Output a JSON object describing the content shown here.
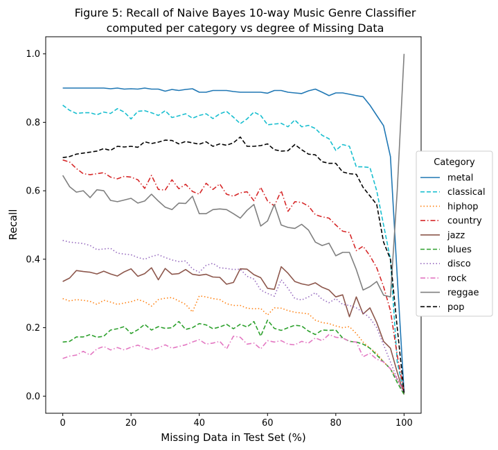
{
  "chart_data": {
    "type": "line",
    "title_lines": [
      "Figure 5: Recall of Naive Bayes 10-way Music Genre Classifier",
      "computed per category vs degree of Missing Data"
    ],
    "xlabel": "Missing Data in Test Set (%)",
    "ylabel": "Recall",
    "xlim": [
      -5,
      105
    ],
    "ylim": [
      -0.05,
      1.05
    ],
    "xticks": [
      0,
      20,
      40,
      60,
      80,
      100
    ],
    "yticks": [
      0.0,
      0.2,
      0.4,
      0.6,
      0.8,
      1.0
    ],
    "xtick_labels": [
      "0",
      "20",
      "40",
      "60",
      "80",
      "100"
    ],
    "ytick_labels": [
      "0.0",
      "0.2",
      "0.4",
      "0.6",
      "0.8",
      "1.0"
    ],
    "grid": false,
    "legend": {
      "title": "Category",
      "placement": "outside-right"
    },
    "x": [
      0,
      2,
      4,
      6,
      8,
      10,
      12,
      14,
      16,
      18,
      20,
      22,
      24,
      26,
      28,
      30,
      32,
      34,
      36,
      38,
      40,
      42,
      44,
      46,
      48,
      50,
      52,
      54,
      56,
      58,
      60,
      62,
      64,
      66,
      68,
      70,
      72,
      74,
      76,
      78,
      80,
      82,
      84,
      86,
      88,
      90,
      92,
      94,
      96,
      98,
      100
    ],
    "series": [
      {
        "name": "metal",
        "color": "#1f77b4",
        "dash": "solid",
        "values": [
          0.9,
          0.9,
          0.9,
          0.9,
          0.9,
          0.9,
          0.9,
          0.898,
          0.9,
          0.897,
          0.898,
          0.897,
          0.9,
          0.897,
          0.897,
          0.891,
          0.896,
          0.893,
          0.896,
          0.898,
          0.888,
          0.888,
          0.893,
          0.893,
          0.893,
          0.89,
          0.888,
          0.888,
          0.888,
          0.888,
          0.885,
          0.893,
          0.893,
          0.888,
          0.886,
          0.884,
          0.892,
          0.897,
          0.888,
          0.878,
          0.886,
          0.886,
          0.882,
          0.878,
          0.875,
          0.85,
          0.82,
          0.79,
          0.7,
          0.35,
          0.01
        ]
      },
      {
        "name": "classical",
        "color": "#17becf",
        "dash": "dashed",
        "values": [
          0.85,
          0.835,
          0.826,
          0.828,
          0.828,
          0.822,
          0.83,
          0.826,
          0.84,
          0.83,
          0.81,
          0.832,
          0.834,
          0.828,
          0.82,
          0.834,
          0.814,
          0.819,
          0.825,
          0.812,
          0.82,
          0.825,
          0.811,
          0.825,
          0.832,
          0.815,
          0.796,
          0.81,
          0.83,
          0.82,
          0.793,
          0.795,
          0.797,
          0.787,
          0.807,
          0.787,
          0.791,
          0.782,
          0.762,
          0.752,
          0.718,
          0.735,
          0.73,
          0.67,
          0.67,
          0.668,
          0.6,
          0.5,
          0.4,
          0.1,
          0.01
        ]
      },
      {
        "name": "hiphop",
        "color": "#ff7f0e",
        "dash": "dotted",
        "values": [
          0.285,
          0.278,
          0.282,
          0.28,
          0.277,
          0.268,
          0.28,
          0.275,
          0.268,
          0.272,
          0.276,
          0.282,
          0.276,
          0.263,
          0.282,
          0.286,
          0.288,
          0.278,
          0.268,
          0.246,
          0.293,
          0.29,
          0.285,
          0.282,
          0.27,
          0.265,
          0.265,
          0.257,
          0.255,
          0.256,
          0.237,
          0.258,
          0.257,
          0.25,
          0.245,
          0.243,
          0.24,
          0.222,
          0.215,
          0.212,
          0.205,
          0.2,
          0.203,
          0.183,
          0.158,
          0.14,
          0.125,
          0.1,
          0.08,
          0.05,
          0.01
        ]
      },
      {
        "name": "country",
        "color": "#d62728",
        "dash": "dashdot",
        "values": [
          0.69,
          0.684,
          0.665,
          0.65,
          0.647,
          0.65,
          0.653,
          0.64,
          0.635,
          0.642,
          0.64,
          0.632,
          0.607,
          0.645,
          0.604,
          0.602,
          0.632,
          0.606,
          0.619,
          0.598,
          0.59,
          0.622,
          0.604,
          0.62,
          0.59,
          0.584,
          0.594,
          0.597,
          0.571,
          0.61,
          0.57,
          0.556,
          0.6,
          0.54,
          0.568,
          0.566,
          0.555,
          0.53,
          0.524,
          0.52,
          0.5,
          0.482,
          0.478,
          0.425,
          0.438,
          0.41,
          0.375,
          0.32,
          0.25,
          0.12,
          0.01
        ]
      },
      {
        "name": "jazz",
        "color": "#8c564b",
        "dash": "solid",
        "values": [
          0.335,
          0.345,
          0.367,
          0.364,
          0.362,
          0.357,
          0.365,
          0.357,
          0.351,
          0.363,
          0.372,
          0.35,
          0.358,
          0.375,
          0.34,
          0.373,
          0.356,
          0.358,
          0.37,
          0.356,
          0.353,
          0.356,
          0.348,
          0.347,
          0.327,
          0.332,
          0.372,
          0.371,
          0.355,
          0.346,
          0.315,
          0.312,
          0.378,
          0.359,
          0.335,
          0.328,
          0.324,
          0.331,
          0.318,
          0.31,
          0.29,
          0.296,
          0.232,
          0.29,
          0.24,
          0.258,
          0.215,
          0.16,
          0.14,
          0.07,
          0.005
        ]
      },
      {
        "name": "blues",
        "color": "#2ca02c",
        "dash": "dashed",
        "values": [
          0.158,
          0.16,
          0.173,
          0.173,
          0.18,
          0.172,
          0.175,
          0.193,
          0.197,
          0.203,
          0.183,
          0.194,
          0.21,
          0.193,
          0.203,
          0.198,
          0.2,
          0.218,
          0.195,
          0.2,
          0.212,
          0.208,
          0.197,
          0.202,
          0.21,
          0.197,
          0.21,
          0.202,
          0.218,
          0.175,
          0.222,
          0.198,
          0.192,
          0.2,
          0.207,
          0.205,
          0.19,
          0.18,
          0.193,
          0.192,
          0.193,
          0.17,
          0.16,
          0.158,
          0.152,
          0.14,
          0.12,
          0.1,
          0.08,
          0.04,
          0.005
        ]
      },
      {
        "name": "disco",
        "color": "#9467bd",
        "dash": "dotted",
        "values": [
          0.455,
          0.45,
          0.448,
          0.446,
          0.44,
          0.428,
          0.43,
          0.432,
          0.418,
          0.415,
          0.413,
          0.405,
          0.4,
          0.408,
          0.413,
          0.405,
          0.398,
          0.393,
          0.395,
          0.372,
          0.362,
          0.382,
          0.388,
          0.375,
          0.373,
          0.37,
          0.371,
          0.35,
          0.342,
          0.31,
          0.3,
          0.292,
          0.34,
          0.315,
          0.285,
          0.281,
          0.29,
          0.302,
          0.283,
          0.273,
          0.285,
          0.268,
          0.265,
          0.258,
          0.245,
          0.228,
          0.2,
          0.15,
          0.1,
          0.05,
          0.01
        ]
      },
      {
        "name": "rock",
        "color": "#e377c2",
        "dash": "dashdot",
        "values": [
          0.11,
          0.117,
          0.12,
          0.131,
          0.12,
          0.138,
          0.145,
          0.135,
          0.142,
          0.135,
          0.143,
          0.149,
          0.141,
          0.135,
          0.141,
          0.15,
          0.14,
          0.145,
          0.15,
          0.158,
          0.165,
          0.152,
          0.155,
          0.16,
          0.138,
          0.175,
          0.172,
          0.152,
          0.155,
          0.138,
          0.162,
          0.158,
          0.162,
          0.152,
          0.15,
          0.16,
          0.155,
          0.17,
          0.162,
          0.18,
          0.172,
          0.17,
          0.16,
          0.158,
          0.115,
          0.125,
          0.108,
          0.1,
          0.08,
          0.05,
          0.01
        ]
      },
      {
        "name": "reggae",
        "color": "#7f7f7f",
        "dash": "solid",
        "values": [
          0.645,
          0.612,
          0.596,
          0.6,
          0.58,
          0.603,
          0.6,
          0.572,
          0.568,
          0.573,
          0.578,
          0.564,
          0.57,
          0.59,
          0.57,
          0.552,
          0.545,
          0.564,
          0.563,
          0.584,
          0.533,
          0.533,
          0.545,
          0.547,
          0.545,
          0.533,
          0.52,
          0.543,
          0.56,
          0.497,
          0.512,
          0.56,
          0.5,
          0.493,
          0.49,
          0.502,
          0.485,
          0.45,
          0.44,
          0.447,
          0.41,
          0.42,
          0.42,
          0.37,
          0.31,
          0.32,
          0.335,
          0.295,
          0.29,
          0.6,
          1.0
        ]
      },
      {
        "name": "pop",
        "color": "#000000",
        "dash": "dashed",
        "values": [
          0.697,
          0.7,
          0.707,
          0.71,
          0.713,
          0.716,
          0.723,
          0.718,
          0.73,
          0.728,
          0.73,
          0.727,
          0.743,
          0.738,
          0.742,
          0.748,
          0.747,
          0.737,
          0.744,
          0.74,
          0.736,
          0.743,
          0.73,
          0.737,
          0.733,
          0.74,
          0.757,
          0.73,
          0.73,
          0.732,
          0.737,
          0.72,
          0.716,
          0.717,
          0.735,
          0.72,
          0.707,
          0.705,
          0.685,
          0.68,
          0.68,
          0.655,
          0.65,
          0.648,
          0.61,
          0.585,
          0.56,
          0.45,
          0.4,
          0.2,
          0.01
        ]
      }
    ]
  }
}
